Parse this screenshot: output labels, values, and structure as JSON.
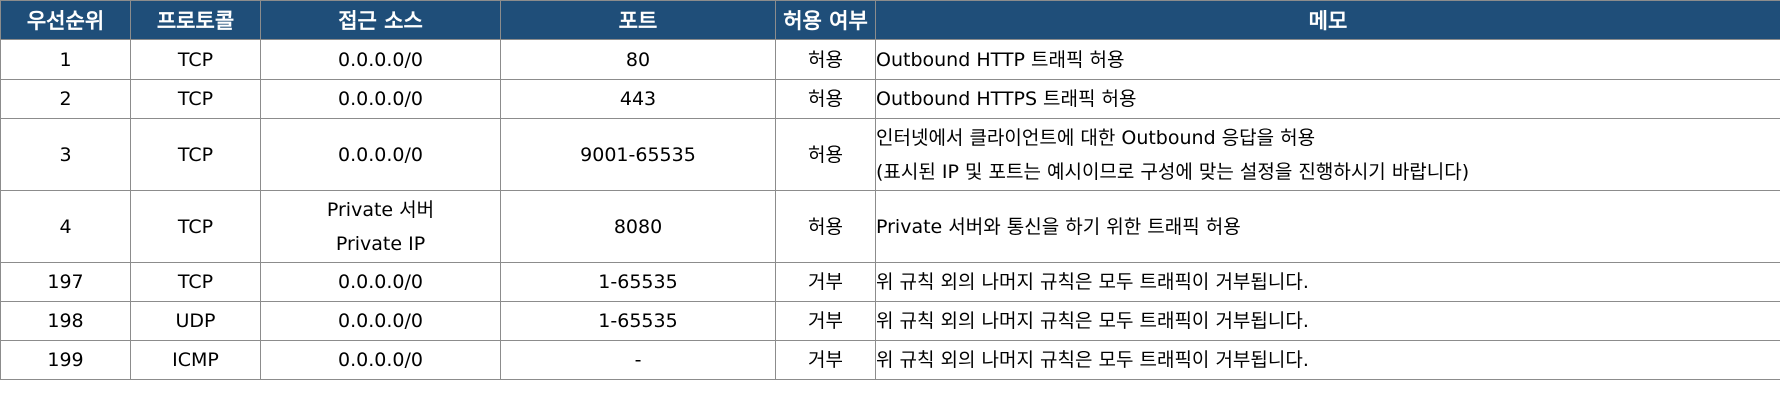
{
  "table": {
    "headers": [
      "우선순위",
      "프로토콜",
      "접근 소스",
      "포트",
      "허용 여부",
      "메모"
    ],
    "rows": [
      {
        "priority": "1",
        "protocol": "TCP",
        "source": [
          "0.0.0.0/0"
        ],
        "port": "80",
        "action": "허용",
        "memo": [
          "Outbound HTTP 트래픽 허용"
        ]
      },
      {
        "priority": "2",
        "protocol": "TCP",
        "source": [
          "0.0.0.0/0"
        ],
        "port": "443",
        "action": "허용",
        "memo": [
          "Outbound HTTPS 트래픽 허용"
        ]
      },
      {
        "priority": "3",
        "protocol": "TCP",
        "source": [
          "0.0.0.0/0"
        ],
        "port": "9001-65535",
        "action": "허용",
        "memo": [
          "인터넷에서 클라이언트에 대한 Outbound 응답을 허용",
          "(표시된 IP 및 포트는 예시이므로 구성에 맞는 설정을 진행하시기 바랍니다)"
        ]
      },
      {
        "priority": "4",
        "protocol": "TCP",
        "source": [
          "Private 서버",
          "Private IP"
        ],
        "port": "8080",
        "action": "허용",
        "memo": [
          "Private 서버와 통신을 하기 위한 트래픽 허용"
        ]
      },
      {
        "priority": "197",
        "protocol": "TCP",
        "source": [
          "0.0.0.0/0"
        ],
        "port": "1-65535",
        "action": "거부",
        "memo": [
          "위 규칙 외의 나머지 규칙은 모두 트래픽이 거부됩니다."
        ]
      },
      {
        "priority": "198",
        "protocol": "UDP",
        "source": [
          "0.0.0.0/0"
        ],
        "port": "1-65535",
        "action": "거부",
        "memo": [
          "위 규칙 외의 나머지 규칙은 모두 트래픽이 거부됩니다."
        ]
      },
      {
        "priority": "199",
        "protocol": "ICMP",
        "source": [
          "0.0.0.0/0"
        ],
        "port": "-",
        "action": "거부",
        "memo": [
          "위 규칙 외의 나머지 규칙은 모두 트래픽이 거부됩니다."
        ]
      }
    ]
  },
  "colors": {
    "header_bg": "#1f4e79",
    "header_text": "#ffffff",
    "border": "#8c8c8c"
  }
}
